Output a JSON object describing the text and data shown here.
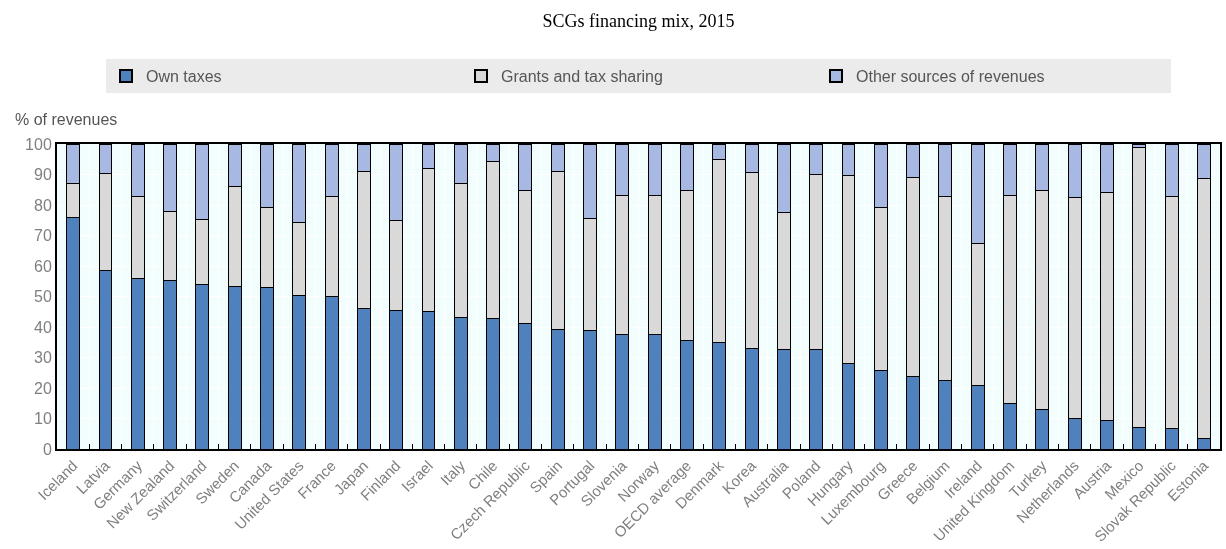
{
  "chart_data": {
    "type": "bar",
    "title": "SCGs financing mix, 2015",
    "ylabel": "% of revenues",
    "categories": [
      "Iceland",
      "Latvia",
      "Germany",
      "New Zealand",
      "Switzerland",
      "Sweden",
      "Canada",
      "United States",
      "France",
      "Japan",
      "Finland",
      "Israel",
      "Italy",
      "Chile",
      "Czech Republic",
      "Spain",
      "Portugal",
      "Slovenia",
      "Norway",
      "OECD average",
      "Denmark",
      "Korea",
      "Australia",
      "Poland",
      "Hungary",
      "Luxembourg",
      "Greece",
      "Belgium",
      "Ireland",
      "United Kingdom",
      "Turkey",
      "Netherlands",
      "Austria",
      "Mexico",
      "Slovak Republic",
      "Estonia"
    ],
    "series": [
      {
        "name": "Own taxes",
        "color": "#4f81bd",
        "values": [
          76.0,
          58.6,
          56.0,
          55.4,
          54.0,
          53.3,
          52.9,
          50.4,
          49.9,
          46.0,
          45.5,
          45.2,
          43.0,
          42.7,
          41.3,
          39.3,
          38.9,
          37.7,
          37.4,
          35.5,
          34.8,
          33.1,
          32.6,
          32.6,
          28.0,
          25.9,
          23.8,
          22.3,
          20.8,
          14.9,
          12.8,
          9.9,
          9.5,
          7.1,
          6.8,
          3.3
        ]
      },
      {
        "name": "Grants and tax sharing",
        "color": "#d9d9d9",
        "values": [
          11.1,
          31.7,
          26.7,
          22.6,
          21.3,
          32.7,
          26.4,
          23.9,
          33.0,
          44.9,
          29.3,
          46.8,
          43.9,
          51.5,
          43.6,
          51.6,
          36.6,
          45.3,
          45.7,
          49.1,
          60.0,
          57.5,
          44.9,
          57.5,
          61.8,
          53.2,
          65.3,
          60.4,
          46.6,
          68.2,
          71.9,
          72.7,
          74.5,
          91.8,
          76.0,
          85.3
        ]
      },
      {
        "name": "Other sources of revenues",
        "color": "#a7b9e3",
        "values": [
          12.9,
          9.7,
          17.3,
          22.0,
          24.7,
          14.0,
          20.7,
          25.7,
          17.1,
          9.1,
          25.2,
          8.0,
          13.1,
          5.8,
          15.1,
          9.1,
          24.5,
          17.0,
          16.9,
          15.4,
          5.2,
          9.4,
          22.5,
          9.9,
          10.2,
          20.9,
          10.9,
          17.3,
          32.6,
          16.9,
          15.3,
          17.4,
          16.0,
          1.1,
          17.2,
          11.4
        ]
      }
    ],
    "stacked": true,
    "ylim": [
      0,
      100
    ],
    "yticks": [
      0,
      10,
      20,
      30,
      40,
      50,
      60,
      70,
      80,
      90,
      100
    ],
    "grid": true,
    "legend": "top"
  }
}
